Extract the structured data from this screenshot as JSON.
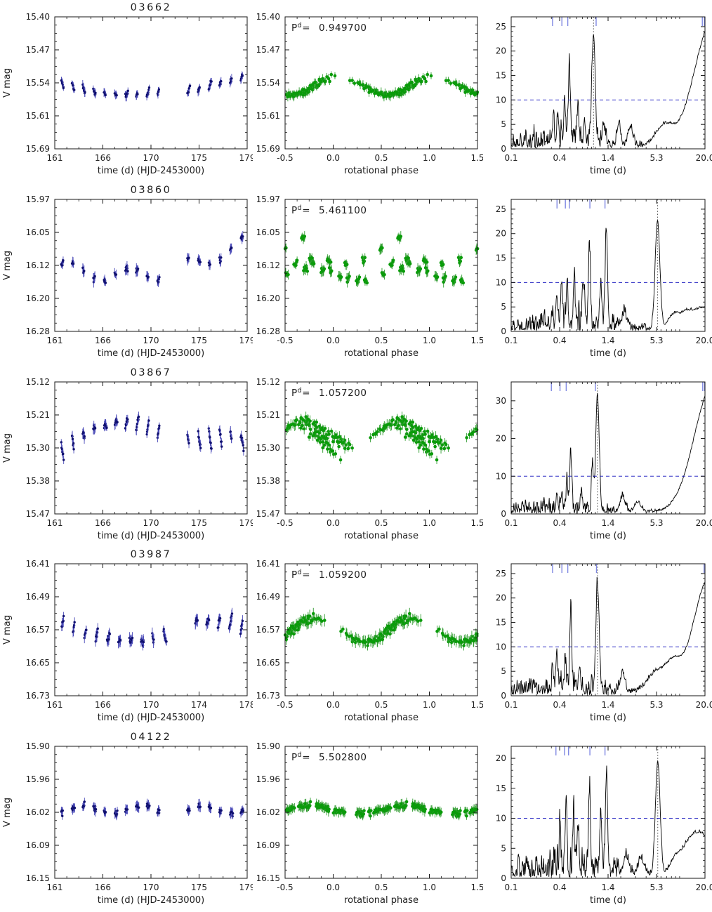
{
  "figure": {
    "columns": [
      "light curve",
      "phase folded",
      "periodogram"
    ],
    "n_rows": 5,
    "background": "#ffffff"
  },
  "chart_data": [
    {
      "id": "03662",
      "lightcurve": {
        "type": "scatter",
        "title": "03662",
        "xlabel": "time (d) (HJD-2453000)",
        "ylabel": "V mag",
        "xlim": [
          161,
          179
        ],
        "xtick_labels": [
          "161",
          "166",
          "170",
          "175",
          "179"
        ],
        "ylim": [
          15.4,
          15.69
        ],
        "ytick_labels": [
          "15.40",
          "15.47",
          "15.54",
          "15.61",
          "15.69"
        ],
        "y_axis_inverted_magnitudes": true,
        "period_d": 0.9497,
        "mean_mag": 15.545,
        "amplitude": 0.013,
        "scatter_sigma": 0.006,
        "errorbar": 0.008,
        "trend_poly": [
          0,
          0.065,
          -0.07
        ],
        "phase_shift": -0.3,
        "marker_color": "#10106e",
        "errorbar_color": "#4a4ab8",
        "seed": 11
      },
      "phased": {
        "type": "scatter",
        "xlabel": "rotational phase",
        "xlim": [
          -0.5,
          1.5
        ],
        "xtick_labels": [
          "-0.5",
          "0.0",
          "0.5",
          "1.0",
          "1.5"
        ],
        "ylim": [
          15.4,
          15.69
        ],
        "ytick_labels": [
          "15.40",
          "15.47",
          "15.54",
          "15.61",
          "15.69"
        ],
        "annotation": {
          "prefix": "P",
          "sup": "d",
          "eq": "=",
          "value": "0.949700"
        },
        "marker_color": "#0a9b0a",
        "errorbar_color": "#2f9b2f"
      },
      "periodogram": {
        "type": "line",
        "xlabel": "time (d)",
        "xscale": "log",
        "xlim": [
          0.1,
          20.0
        ],
        "xtick_labels": [
          "0.1",
          "0.4",
          "1.4",
          "5.3",
          "20.0"
        ],
        "ylim": [
          0,
          27
        ],
        "ytick_vals": [
          0,
          5,
          10,
          15,
          20,
          25
        ],
        "ytick_labels": [
          "0",
          "5",
          "10",
          "15",
          "20",
          "25"
        ],
        "threshold": 10,
        "threshold_color": "#2a2ac4",
        "line_color": "#000000",
        "adopted_period_d": 0.9497,
        "peaks": [
          [
            0.9497,
            23,
            0.02
          ],
          [
            0.49,
            15,
            0.012
          ],
          [
            0.43,
            9,
            0.01
          ],
          [
            0.36,
            6,
            0.01
          ],
          [
            0.32,
            5,
            0.009
          ],
          [
            0.62,
            7,
            0.011
          ],
          [
            0.75,
            4,
            0.01
          ],
          [
            1.25,
            4,
            0.015
          ],
          [
            1.9,
            5,
            0.02
          ],
          [
            2.6,
            4,
            0.03
          ],
          [
            6.5,
            4,
            0.1
          ],
          [
            25,
            26,
            0.22
          ]
        ],
        "noise_height": 4,
        "top_markers": [
          0.31,
          0.4,
          0.47,
          1.02,
          18.6,
          19.7
        ],
        "top_marker_color": "#7f88e2",
        "seed": 21
      }
    },
    {
      "id": "03860",
      "lightcurve": {
        "type": "scatter",
        "title": "03860",
        "xlabel": "time (d) (HJD-2453000)",
        "ylabel": "V mag",
        "xlim": [
          161,
          179
        ],
        "xtick_labels": [
          "161",
          "166",
          "170",
          "175",
          "179"
        ],
        "ylim": [
          15.97,
          16.28
        ],
        "ytick_labels": [
          "15.97",
          "16.05",
          "16.12",
          "16.20",
          "16.28"
        ],
        "y_axis_inverted_magnitudes": true,
        "period_d": 5.4611,
        "mean_mag": 16.125,
        "amplitude": 0.015,
        "scatter_sigma": 0.012,
        "errorbar": 0.01,
        "trend_poly": [
          0,
          0.14,
          -0.2
        ],
        "phase_shift": 0,
        "marker_color": "#10106e",
        "errorbar_color": "#4a4ab8",
        "seed": 12
      },
      "phased": {
        "type": "scatter",
        "xlabel": "rotational phase",
        "xlim": [
          -0.5,
          1.5
        ],
        "xtick_labels": [
          "-0.5",
          "0.0",
          "0.5",
          "1.0",
          "1.5"
        ],
        "ylim": [
          15.97,
          16.28
        ],
        "ytick_labels": [
          "15.97",
          "16.05",
          "16.12",
          "16.20",
          "16.28"
        ],
        "annotation": {
          "prefix": "P",
          "sup": "d",
          "eq": "=",
          "value": "5.461100"
        },
        "marker_color": "#0a9b0a",
        "errorbar_color": "#2f9b2f"
      },
      "periodogram": {
        "type": "line",
        "xlabel": "time (d)",
        "xscale": "log",
        "xlim": [
          0.1,
          20.0
        ],
        "xtick_labels": [
          "0.1",
          "0.4",
          "1.4",
          "5.3",
          "20.0"
        ],
        "ylim": [
          0,
          27
        ],
        "ytick_vals": [
          0,
          5,
          10,
          15,
          20,
          25
        ],
        "ytick_labels": [
          "0",
          "5",
          "10",
          "15",
          "20",
          "25"
        ],
        "threshold": 10,
        "threshold_color": "#2a2ac4",
        "line_color": "#000000",
        "adopted_period_d": 5.4611,
        "peaks": [
          [
            5.4611,
            22,
            0.028
          ],
          [
            1.35,
            20,
            0.014
          ],
          [
            1.16,
            9,
            0.012
          ],
          [
            0.85,
            16,
            0.012
          ],
          [
            0.72,
            8,
            0.011
          ],
          [
            0.56,
            11,
            0.01
          ],
          [
            0.46,
            10,
            0.01
          ],
          [
            0.4,
            8,
            0.009
          ],
          [
            0.35,
            6,
            0.009
          ],
          [
            2.2,
            3,
            0.03
          ],
          [
            8.5,
            3,
            0.07
          ],
          [
            12,
            2.5,
            0.07
          ],
          [
            19,
            4.5,
            0.12
          ]
        ],
        "noise_height": 4.5,
        "top_markers": [
          0.35,
          0.44,
          0.49,
          0.86,
          1.3
        ],
        "top_marker_color": "#7f88e2",
        "seed": 22
      }
    },
    {
      "id": "03867",
      "lightcurve": {
        "type": "scatter",
        "title": "03867",
        "xlabel": "time (d) (HJD-2453000)",
        "ylabel": "V mag",
        "xlim": [
          161,
          179
        ],
        "xtick_labels": [
          "161",
          "166",
          "170",
          "175",
          "179"
        ],
        "ylim": [
          15.12,
          15.47
        ],
        "ytick_labels": [
          "15.12",
          "15.21",
          "15.30",
          "15.38",
          "15.47"
        ],
        "y_axis_inverted_magnitudes": true,
        "period_d": 1.0572,
        "mean_mag": 15.285,
        "amplitude": 0.035,
        "scatter_sigma": 0.01,
        "errorbar": 0.012,
        "trend_poly": [
          0.04,
          -0.3,
          0.28
        ],
        "phase_shift": 0,
        "marker_color": "#10106e",
        "errorbar_color": "#4a4ab8",
        "seed": 13
      },
      "phased": {
        "type": "scatter",
        "xlabel": "rotational phase",
        "xlim": [
          -0.5,
          1.5
        ],
        "xtick_labels": [
          "-0.5",
          "0.0",
          "0.5",
          "1.0",
          "1.5"
        ],
        "ylim": [
          15.12,
          15.47
        ],
        "ytick_labels": [
          "15.12",
          "15.21",
          "15.30",
          "15.38",
          "15.47"
        ],
        "annotation": {
          "prefix": "P",
          "sup": "d",
          "eq": "=",
          "value": "1.057200"
        },
        "marker_color": "#0a9b0a",
        "errorbar_color": "#2f9b2f"
      },
      "periodogram": {
        "type": "line",
        "xlabel": "time (d)",
        "xscale": "log",
        "xlim": [
          0.1,
          20.0
        ],
        "xtick_labels": [
          "0.1",
          "0.4",
          "1.4",
          "5.3",
          "20.0"
        ],
        "ylim": [
          0,
          35
        ],
        "ytick_vals": [
          0,
          10,
          20,
          30
        ],
        "ytick_labels": [
          "0",
          "10",
          "20",
          "30"
        ],
        "threshold": 10,
        "threshold_color": "#2a2ac4",
        "line_color": "#000000",
        "adopted_period_d": 1.0572,
        "peaks": [
          [
            1.0572,
            31,
            0.02
          ],
          [
            0.92,
            11,
            0.012
          ],
          [
            0.51,
            15,
            0.012
          ],
          [
            0.46,
            7,
            0.01
          ],
          [
            0.4,
            5,
            0.01
          ],
          [
            0.35,
            5,
            0.009
          ],
          [
            0.68,
            5,
            0.011
          ],
          [
            2.1,
            4,
            0.03
          ],
          [
            3.2,
            2.5,
            0.04
          ],
          [
            25,
            34,
            0.22
          ]
        ],
        "noise_height": 3.5,
        "top_markers": [
          0.3,
          0.38,
          0.45,
          1.0,
          18.8,
          19.8
        ],
        "top_marker_color": "#7f88e2",
        "seed": 23
      }
    },
    {
      "id": "03987",
      "lightcurve": {
        "type": "scatter",
        "title": "03987",
        "xlabel": "time (d) (HJD-2453000)",
        "ylabel": "V mag",
        "xlim": [
          161,
          178
        ],
        "xtick_labels": [
          "161",
          "166",
          "170",
          "174",
          "178"
        ],
        "ylim": [
          16.41,
          16.73
        ],
        "ytick_labels": [
          "16.41",
          "16.49",
          "16.57",
          "16.65",
          "16.73"
        ],
        "y_axis_inverted_magnitudes": true,
        "period_d": 1.0592,
        "mean_mag": 16.56,
        "amplitude": 0.027,
        "scatter_sigma": 0.013,
        "errorbar": 0.012,
        "trend_poly": [
          0,
          0.06,
          -0.06
        ],
        "phase_shift": -0.1,
        "marker_color": "#10106e",
        "errorbar_color": "#4a4ab8",
        "seed": 14
      },
      "phased": {
        "type": "scatter",
        "xlabel": "rotational phase",
        "xlim": [
          -0.5,
          1.5
        ],
        "xtick_labels": [
          "-0.5",
          "0.0",
          "0.5",
          "1.0",
          "1.5"
        ],
        "ylim": [
          16.41,
          16.73
        ],
        "ytick_labels": [
          "16.41",
          "16.49",
          "16.57",
          "16.65",
          "16.73"
        ],
        "annotation": {
          "prefix": "P",
          "sup": "d",
          "eq": "=",
          "value": "1.059200"
        },
        "marker_color": "#0a9b0a",
        "errorbar_color": "#2f9b2f"
      },
      "periodogram": {
        "type": "line",
        "xlabel": "time (d)",
        "xscale": "log",
        "xlim": [
          0.1,
          20.0
        ],
        "xtick_labels": [
          "0.1",
          "0.4",
          "1.4",
          "5.3",
          "20.0"
        ],
        "ylim": [
          0,
          27
        ],
        "ytick_vals": [
          0,
          5,
          10,
          15,
          20,
          25
        ],
        "ytick_labels": [
          "0",
          "5",
          "10",
          "15",
          "20",
          "25"
        ],
        "threshold": 10,
        "threshold_color": "#2a2ac4",
        "line_color": "#000000",
        "adopted_period_d": 1.0592,
        "peaks": [
          [
            1.0592,
            22,
            0.02
          ],
          [
            0.51,
            17,
            0.012
          ],
          [
            0.44,
            6,
            0.01
          ],
          [
            0.35,
            8,
            0.01
          ],
          [
            0.31,
            5,
            0.009
          ],
          [
            0.65,
            5,
            0.011
          ],
          [
            2.1,
            4,
            0.03
          ],
          [
            5.5,
            4.5,
            0.12
          ],
          [
            8.5,
            4,
            0.08
          ],
          [
            23,
            24,
            0.2
          ]
        ],
        "noise_height": 3.5,
        "top_markers": [
          0.31,
          0.4,
          0.47,
          1.03,
          19.5
        ],
        "top_marker_color": "#7f88e2",
        "seed": 24
      }
    },
    {
      "id": "04122",
      "lightcurve": {
        "type": "scatter",
        "title": "04122",
        "xlabel": "time (d) (HJD-2453000)",
        "ylabel": "V mag",
        "xlim": [
          161,
          179
        ],
        "xtick_labels": [
          "161",
          "166",
          "170",
          "175",
          "179"
        ],
        "ylim": [
          15.9,
          16.15
        ],
        "ytick_labels": [
          "15.90",
          "15.96",
          "16.02",
          "16.09",
          "16.15"
        ],
        "y_axis_inverted_magnitudes": true,
        "period_d": 5.5028,
        "mean_mag": 16.02,
        "amplitude": 0.008,
        "scatter_sigma": 0.008,
        "errorbar": 0.008,
        "trend_poly": [
          0,
          0,
          0
        ],
        "phase_shift": 0,
        "marker_color": "#10106e",
        "errorbar_color": "#4a4ab8",
        "seed": 15
      },
      "phased": {
        "type": "scatter",
        "xlabel": "rotational phase",
        "xlim": [
          -0.5,
          1.5
        ],
        "xtick_labels": [
          "-0.5",
          "0.0",
          "0.5",
          "1.0",
          "1.5"
        ],
        "ylim": [
          15.9,
          16.15
        ],
        "ytick_labels": [
          "15.90",
          "15.96",
          "16.02",
          "16.09",
          "16.15"
        ],
        "annotation": {
          "prefix": "P",
          "sup": "d",
          "eq": "=",
          "value": "5.502800"
        },
        "marker_color": "#0a9b0a",
        "errorbar_color": "#2f9b2f"
      },
      "periodogram": {
        "type": "line",
        "xlabel": "time (d)",
        "xscale": "log",
        "xlim": [
          0.1,
          20.0
        ],
        "xtick_labels": [
          "0.1",
          "0.4",
          "1.4",
          "5.3",
          "20.0"
        ],
        "ylim": [
          0,
          22
        ],
        "ytick_vals": [
          0,
          5,
          10,
          15,
          20
        ],
        "ytick_labels": [
          "0",
          "5",
          "10",
          "15",
          "20"
        ],
        "threshold": 10,
        "threshold_color": "#2a2ac4",
        "line_color": "#000000",
        "adopted_period_d": 5.5028,
        "peaks": [
          [
            5.5028,
            19,
            0.028
          ],
          [
            1.35,
            16,
            0.013
          ],
          [
            1.16,
            9,
            0.012
          ],
          [
            0.85,
            12,
            0.012
          ],
          [
            0.62,
            8,
            0.011
          ],
          [
            0.55,
            9,
            0.01
          ],
          [
            0.45,
            10,
            0.01
          ],
          [
            0.38,
            6,
            0.009
          ],
          [
            2.3,
            3,
            0.03
          ],
          [
            3.5,
            2.5,
            0.04
          ],
          [
            9,
            3,
            0.07
          ],
          [
            13,
            4.5,
            0.08
          ],
          [
            19,
            6.5,
            0.1
          ]
        ],
        "noise_height": 4.5,
        "top_markers": [
          0.34,
          0.43,
          0.48,
          0.86,
          1.3
        ],
        "top_marker_color": "#7f88e2",
        "seed": 25
      }
    }
  ]
}
